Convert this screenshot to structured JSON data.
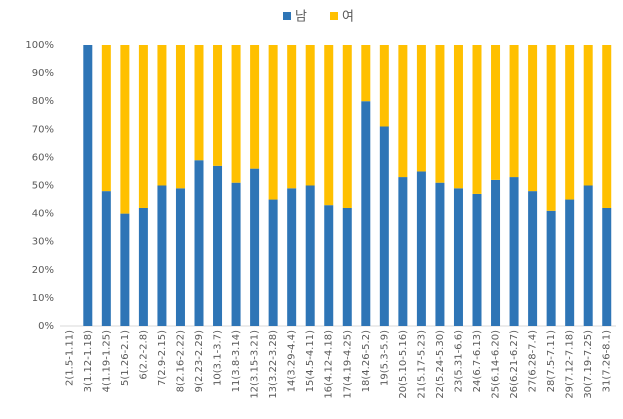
{
  "chart_data": {
    "type": "stacked_bar",
    "categories": [
      "2(1.5-1.11)",
      "3(1.12-1.18)",
      "4(1.19-1.25)",
      "5(1.26-2.1)",
      "6(2.2-2.8)",
      "7(2.9-2.15)",
      "8(2.16-2.22)",
      "9(2.23-2.29)",
      "10(3.1-3.7)",
      "11(3.8-3.14)",
      "12(3.15-3.21)",
      "13(3.22-3.28)",
      "14(3.29-4.4)",
      "15(4.5-4.11)",
      "16(4.12-4.18)",
      "17(4.19-4.25)",
      "18(4.26-5.2)",
      "19(5.3-5.9)",
      "20(5.10-5.16)",
      "21(5.17-5.23)",
      "22(5.24-5.30)",
      "23(5.31-6.6)",
      "24(6.7-6.13)",
      "25(6.14-6.20)",
      "26(6.21-6.27)",
      "27(6.28-7.4)",
      "28(7.5-7.11)",
      "29(7.12-7.18)",
      "30(7.19-7.25)",
      "31(7.26-8.1)"
    ],
    "series": [
      {
        "name": "남",
        "color": "#2e75b6",
        "values": [
          0,
          100,
          48,
          40,
          42,
          50,
          49,
          59,
          57,
          51,
          56,
          45,
          49,
          50,
          43,
          42,
          80,
          71,
          53,
          55,
          51,
          49,
          47,
          52,
          53,
          48,
          41,
          45,
          50,
          42
        ]
      },
      {
        "name": "여",
        "color": "#ffc000",
        "values": [
          0,
          0,
          52,
          60,
          58,
          50,
          51,
          41,
          43,
          49,
          44,
          55,
          51,
          50,
          57,
          58,
          20,
          29,
          47,
          45,
          49,
          51,
          53,
          48,
          47,
          52,
          59,
          55,
          50,
          58
        ]
      }
    ],
    "ylim": [
      0,
      100
    ],
    "yticks": [
      {
        "value": 0,
        "label": "0%"
      },
      {
        "value": 10,
        "label": "10%"
      },
      {
        "value": 20,
        "label": "20%"
      },
      {
        "value": 30,
        "label": "30%"
      },
      {
        "value": 40,
        "label": "40%"
      },
      {
        "value": 50,
        "label": "50%"
      },
      {
        "value": 60,
        "label": "60%"
      },
      {
        "value": 70,
        "label": "70%"
      },
      {
        "value": 80,
        "label": "80%"
      },
      {
        "value": 90,
        "label": "90%"
      },
      {
        "value": 100,
        "label": "100%"
      }
    ],
    "legend": "top",
    "grid": false
  }
}
